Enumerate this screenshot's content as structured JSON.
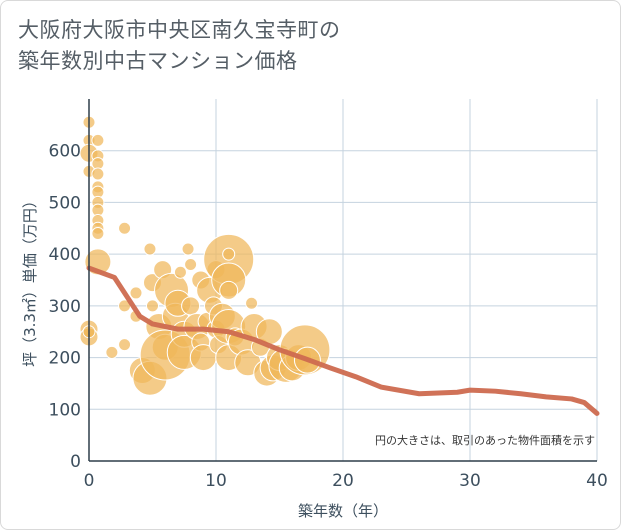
{
  "title_line1": "大阪府大阪市中央区南久宝寺町の",
  "title_line2": "築年数別中古マンション価格",
  "colors": {
    "bubble": "#f0b75a",
    "line": "#cd6a4f",
    "grid": "#c5d3df"
  },
  "chart_data": {
    "type": "scatter",
    "title": "大阪府大阪市中央区南久宝寺町の築年数別中古マンション価格",
    "xlabel": "築年数（年）",
    "ylabel": "坪（3.3㎡）単価（万円）",
    "xlim": [
      0,
      40
    ],
    "ylim": [
      0,
      700
    ],
    "xticks": [
      0,
      10,
      20,
      30,
      40
    ],
    "yticks": [
      0,
      100,
      200,
      300,
      400,
      500,
      600
    ],
    "note": "円の大きさは、取引のあった物件面積を示す",
    "bubbles": [
      {
        "x": 0,
        "y": 655,
        "s": 1
      },
      {
        "x": 0,
        "y": 620,
        "s": 1
      },
      {
        "x": 0,
        "y": 595,
        "s": 2
      },
      {
        "x": 0,
        "y": 560,
        "s": 1
      },
      {
        "x": 0,
        "y": 255,
        "s": 2
      },
      {
        "x": 0,
        "y": 240,
        "s": 2
      },
      {
        "x": 0,
        "y": 250,
        "s": 1
      },
      {
        "x": 0.7,
        "y": 620,
        "s": 1
      },
      {
        "x": 0.7,
        "y": 590,
        "s": 1
      },
      {
        "x": 0.7,
        "y": 575,
        "s": 1
      },
      {
        "x": 0.7,
        "y": 555,
        "s": 1
      },
      {
        "x": 0.7,
        "y": 530,
        "s": 1
      },
      {
        "x": 0.7,
        "y": 520,
        "s": 1
      },
      {
        "x": 0.7,
        "y": 500,
        "s": 1
      },
      {
        "x": 0.7,
        "y": 485,
        "s": 1
      },
      {
        "x": 0.7,
        "y": 465,
        "s": 1
      },
      {
        "x": 0.7,
        "y": 450,
        "s": 1
      },
      {
        "x": 0.7,
        "y": 440,
        "s": 1
      },
      {
        "x": 0.7,
        "y": 385,
        "s": 3
      },
      {
        "x": 1.8,
        "y": 210,
        "s": 1
      },
      {
        "x": 2.8,
        "y": 450,
        "s": 1
      },
      {
        "x": 2.8,
        "y": 300,
        "s": 1
      },
      {
        "x": 2.8,
        "y": 225,
        "s": 1
      },
      {
        "x": 3.7,
        "y": 325,
        "s": 1
      },
      {
        "x": 3.7,
        "y": 280,
        "s": 1
      },
      {
        "x": 4.2,
        "y": 175,
        "s": 3
      },
      {
        "x": 4.8,
        "y": 410,
        "s": 1
      },
      {
        "x": 5,
        "y": 345,
        "s": 2
      },
      {
        "x": 5,
        "y": 300,
        "s": 1
      },
      {
        "x": 4.8,
        "y": 160,
        "s": 4
      },
      {
        "x": 5.5,
        "y": 260,
        "s": 3
      },
      {
        "x": 5.8,
        "y": 370,
        "s": 2
      },
      {
        "x": 6,
        "y": 220,
        "s": 3
      },
      {
        "x": 6,
        "y": 205,
        "s": 5
      },
      {
        "x": 6.5,
        "y": 330,
        "s": 4
      },
      {
        "x": 6.8,
        "y": 280,
        "s": 3
      },
      {
        "x": 7,
        "y": 305,
        "s": 3
      },
      {
        "x": 7.2,
        "y": 365,
        "s": 1
      },
      {
        "x": 7.5,
        "y": 245,
        "s": 3
      },
      {
        "x": 7.5,
        "y": 210,
        "s": 4
      },
      {
        "x": 7.8,
        "y": 410,
        "s": 1
      },
      {
        "x": 8,
        "y": 380,
        "s": 1
      },
      {
        "x": 8,
        "y": 300,
        "s": 2
      },
      {
        "x": 8.5,
        "y": 260,
        "s": 3
      },
      {
        "x": 8.8,
        "y": 350,
        "s": 2
      },
      {
        "x": 8.8,
        "y": 230,
        "s": 2
      },
      {
        "x": 9,
        "y": 200,
        "s": 3
      },
      {
        "x": 9.3,
        "y": 270,
        "s": 2
      },
      {
        "x": 9.5,
        "y": 330,
        "s": 3
      },
      {
        "x": 9.8,
        "y": 300,
        "s": 2
      },
      {
        "x": 10,
        "y": 255,
        "s": 2
      },
      {
        "x": 10,
        "y": 370,
        "s": 2
      },
      {
        "x": 10.2,
        "y": 225,
        "s": 2
      },
      {
        "x": 10.5,
        "y": 280,
        "s": 3
      },
      {
        "x": 11,
        "y": 390,
        "s": 5
      },
      {
        "x": 11,
        "y": 400,
        "s": 1
      },
      {
        "x": 11,
        "y": 350,
        "s": 4
      },
      {
        "x": 11,
        "y": 330,
        "s": 2
      },
      {
        "x": 11,
        "y": 260,
        "s": 4
      },
      {
        "x": 11,
        "y": 200,
        "s": 3
      },
      {
        "x": 11.5,
        "y": 240,
        "s": 2
      },
      {
        "x": 12,
        "y": 230,
        "s": 3
      },
      {
        "x": 12.5,
        "y": 190,
        "s": 3
      },
      {
        "x": 12.8,
        "y": 305,
        "s": 1
      },
      {
        "x": 13,
        "y": 260,
        "s": 3
      },
      {
        "x": 13.5,
        "y": 220,
        "s": 2
      },
      {
        "x": 14,
        "y": 170,
        "s": 3
      },
      {
        "x": 14.2,
        "y": 250,
        "s": 3
      },
      {
        "x": 14.5,
        "y": 180,
        "s": 3
      },
      {
        "x": 15,
        "y": 200,
        "s": 3
      },
      {
        "x": 15.5,
        "y": 185,
        "s": 4
      },
      {
        "x": 16,
        "y": 180,
        "s": 3
      },
      {
        "x": 16.5,
        "y": 200,
        "s": 3
      },
      {
        "x": 17,
        "y": 215,
        "s": 5
      },
      {
        "x": 17.2,
        "y": 195,
        "s": 3
      }
    ],
    "trend": {
      "x": [
        0,
        2,
        4,
        5,
        7,
        9,
        11,
        13,
        15,
        17,
        19,
        21,
        23,
        26,
        29,
        30,
        32,
        34,
        36,
        38,
        39,
        40
      ],
      "y": [
        373,
        355,
        280,
        265,
        255,
        255,
        250,
        235,
        215,
        198,
        180,
        163,
        143,
        130,
        133,
        137,
        135,
        130,
        124,
        120,
        113,
        92
      ]
    }
  }
}
